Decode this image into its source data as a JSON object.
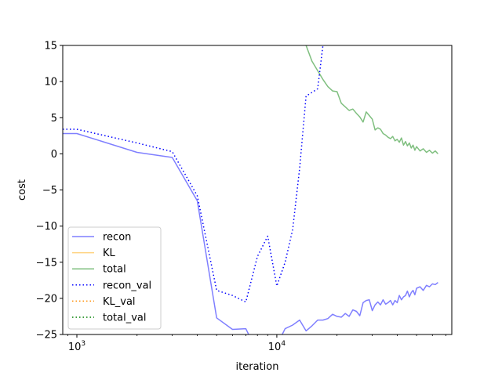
{
  "chart_data": {
    "type": "line",
    "title": "",
    "xlabel": "iteration",
    "ylabel": "cost",
    "xscale": "log",
    "xlim": [
      850,
      75000
    ],
    "ylim": [
      -25,
      15
    ],
    "x_major_ticks": [
      {
        "value": 1000,
        "base": "10",
        "exp": "3"
      },
      {
        "value": 10000,
        "base": "10",
        "exp": "4"
      }
    ],
    "y_ticks": [
      -25,
      -20,
      -15,
      -10,
      -5,
      0,
      5,
      10,
      15
    ],
    "y_tick_labels": [
      "−25",
      "−20",
      "−15",
      "−10",
      "−5",
      "0",
      "5",
      "10",
      "15"
    ],
    "grid": false,
    "legend": {
      "position": "lower-left"
    },
    "series": [
      {
        "name": "recon",
        "color": "#0000ff",
        "opacity": 0.5,
        "dash": "solid",
        "x": [
          850,
          1000,
          2000,
          3000,
          4000,
          5000,
          6000,
          7000,
          8000,
          9000,
          10000,
          11000,
          12000,
          13000,
          14000,
          15000,
          16000,
          17000,
          18000,
          19000,
          20000,
          21000,
          22000,
          23000,
          24000,
          25000,
          26000,
          27000,
          28000,
          29000,
          30000,
          31000,
          32000,
          33000,
          34000,
          35000,
          36000,
          37000,
          38000,
          39000,
          40000,
          41000,
          42000,
          43000,
          44000,
          45000,
          46000,
          47000,
          48000,
          49000,
          50000,
          52000,
          54000,
          56000,
          58000,
          60000,
          62000,
          64000
        ],
        "y": [
          2.8,
          2.8,
          0.2,
          -0.5,
          -6.5,
          -22.7,
          -24.3,
          -24.2,
          -27.5,
          -27.0,
          -26.5,
          -24.2,
          -23.7,
          -23.0,
          -24.5,
          -23.8,
          -23.0,
          -23.0,
          -22.8,
          -22.2,
          -22.5,
          -22.6,
          -22.1,
          -22.5,
          -21.6,
          -21.8,
          -22.4,
          -20.6,
          -20.3,
          -20.2,
          -21.7,
          -20.9,
          -20.5,
          -20.9,
          -20.2,
          -20.8,
          -20.6,
          -20.3,
          -20.9,
          -20.3,
          -20.6,
          -19.6,
          -20.2,
          -19.8,
          -19.6,
          -19.0,
          -19.8,
          -19.2,
          -18.9,
          -19.5,
          -18.6,
          -18.4,
          -18.9,
          -18.2,
          -18.4,
          -18.0,
          -18.1,
          -17.8
        ]
      },
      {
        "name": "KL",
        "color": "#ffa500",
        "opacity": 0.5,
        "dash": "solid",
        "x": [],
        "y": []
      },
      {
        "name": "total",
        "color": "#008000",
        "opacity": 0.5,
        "dash": "solid",
        "x": [
          13500,
          14000,
          15000,
          16000,
          17000,
          18000,
          19000,
          20000,
          21000,
          22000,
          23000,
          24000,
          25000,
          26000,
          27000,
          28000,
          29000,
          30000,
          31000,
          32000,
          33000,
          34000,
          35000,
          36000,
          37000,
          38000,
          39000,
          40000,
          41000,
          42000,
          43000,
          44000,
          45000,
          46000,
          47000,
          48000,
          49000,
          50000,
          52000,
          54000,
          56000,
          58000,
          60000,
          62000,
          64000
        ],
        "y": [
          16.0,
          15.0,
          12.8,
          11.5,
          10.3,
          9.3,
          8.7,
          8.6,
          7.0,
          6.5,
          6.0,
          6.2,
          5.6,
          5.1,
          4.4,
          5.8,
          5.3,
          4.8,
          3.3,
          3.6,
          3.4,
          2.8,
          2.6,
          2.3,
          2.1,
          2.4,
          1.8,
          2.0,
          1.6,
          2.2,
          1.2,
          1.7,
          1.1,
          1.5,
          0.8,
          1.2,
          0.5,
          1.0,
          0.4,
          0.7,
          0.2,
          0.5,
          0.1,
          0.4,
          0.0
        ]
      },
      {
        "name": "recon_val",
        "color": "#0000ff",
        "opacity": 1,
        "dash": "dotted",
        "x": [
          850,
          1000,
          2000,
          3000,
          4000,
          5000,
          6000,
          7000,
          8000,
          9000,
          10000,
          11000,
          12000,
          13000,
          14000,
          15000,
          16000,
          17000
        ],
        "y": [
          3.4,
          3.4,
          1.5,
          0.3,
          -5.8,
          -18.9,
          -19.6,
          -20.5,
          -14.2,
          -11.4,
          -18.3,
          -15.0,
          -10.5,
          -2.0,
          8.0,
          8.5,
          9.0,
          15.0
        ]
      },
      {
        "name": "KL_val",
        "color": "#ff8c00",
        "opacity": 1,
        "dash": "dotted",
        "x": [],
        "y": []
      },
      {
        "name": "total_val",
        "color": "#008000",
        "opacity": 1,
        "dash": "dotted",
        "x": [],
        "y": []
      }
    ]
  }
}
